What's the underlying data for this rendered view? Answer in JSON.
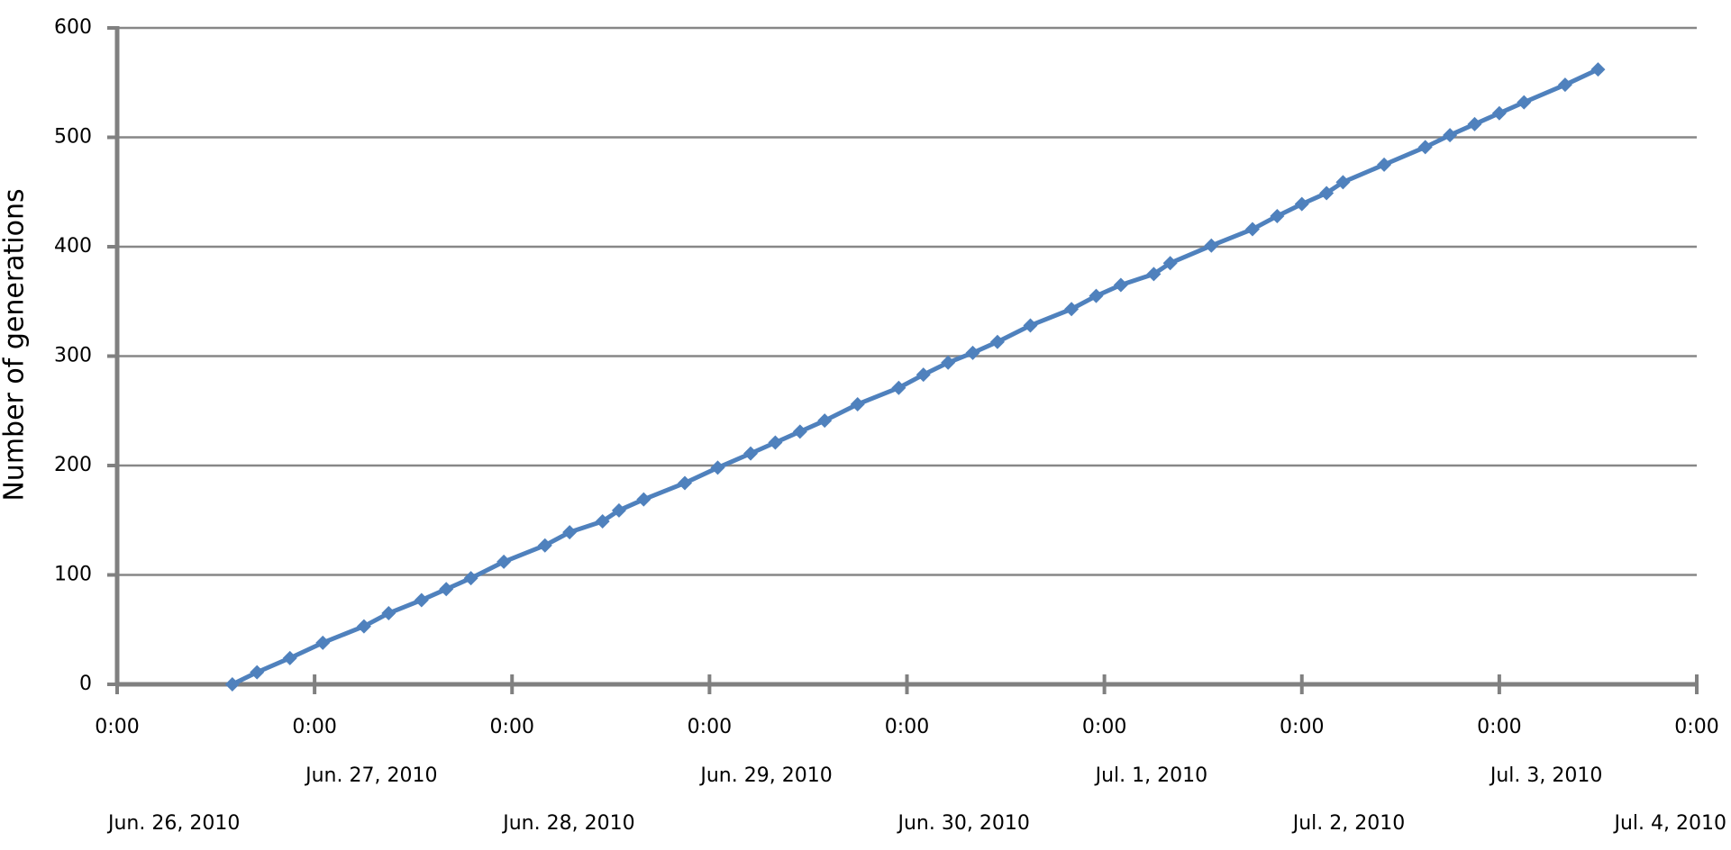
{
  "chart_data": {
    "type": "line",
    "y_label": "Number of generations",
    "ylim": [
      0,
      600
    ],
    "yticks": [
      0,
      100,
      200,
      300,
      400,
      500,
      600
    ],
    "grid": true,
    "xlim": [
      "2010-06-26T00:00",
      "2010-07-04T00:00"
    ],
    "xticks": [
      {
        "value": "2010-06-26T00:00",
        "label": "0:00",
        "date": "Jun. 26, 2010"
      },
      {
        "value": "2010-06-27T00:00",
        "label": "0:00",
        "date": "Jun. 27, 2010"
      },
      {
        "value": "2010-06-28T00:00",
        "label": "0:00",
        "date": "Jun. 28, 2010"
      },
      {
        "value": "2010-06-29T00:00",
        "label": "0:00",
        "date": "Jun. 29, 2010"
      },
      {
        "value": "2010-06-30T00:00",
        "label": "0:00",
        "date": "Jun. 30, 2010"
      },
      {
        "value": "2010-07-01T00:00",
        "label": "0:00",
        "date": "Jul. 1, 2010"
      },
      {
        "value": "2010-07-02T00:00",
        "label": "0:00",
        "date": "Jul. 2, 2010"
      },
      {
        "value": "2010-07-03T00:00",
        "label": "0:00",
        "date": "Jul. 3, 2010"
      },
      {
        "value": "2010-07-04T00:00",
        "label": "0:00",
        "date": "Jul. 4, 2010"
      }
    ],
    "x": [
      "2010-06-26T14:00",
      "2010-06-26T17:00",
      "2010-06-26T21:00",
      "2010-06-27T01:00",
      "2010-06-27T06:00",
      "2010-06-27T09:00",
      "2010-06-27T13:00",
      "2010-06-27T16:00",
      "2010-06-27T19:00",
      "2010-06-27T23:00",
      "2010-06-28T04:00",
      "2010-06-28T07:00",
      "2010-06-28T11:00",
      "2010-06-28T13:00",
      "2010-06-28T16:00",
      "2010-06-28T21:00",
      "2010-06-29T01:00",
      "2010-06-29T05:00",
      "2010-06-29T08:00",
      "2010-06-29T11:00",
      "2010-06-29T14:00",
      "2010-06-29T18:00",
      "2010-06-29T23:00",
      "2010-06-30T02:00",
      "2010-06-30T05:00",
      "2010-06-30T08:00",
      "2010-06-30T11:00",
      "2010-06-30T15:00",
      "2010-06-30T20:00",
      "2010-06-30T23:00",
      "2010-07-01T02:00",
      "2010-07-01T06:00",
      "2010-07-01T08:00",
      "2010-07-01T13:00",
      "2010-07-01T18:00",
      "2010-07-01T21:00",
      "2010-07-02T00:00",
      "2010-07-02T03:00",
      "2010-07-02T05:00",
      "2010-07-02T10:00",
      "2010-07-02T15:00",
      "2010-07-02T18:00",
      "2010-07-02T21:00",
      "2010-07-03T00:00",
      "2010-07-03T03:00",
      "2010-07-03T08:00",
      "2010-07-03T12:00"
    ],
    "series": [
      {
        "color": "#4f81bd",
        "values": [
          0,
          11,
          24,
          38,
          53,
          65,
          77,
          87,
          97,
          112,
          127,
          139,
          149,
          159,
          169,
          184,
          198,
          211,
          221,
          231,
          241,
          256,
          271,
          283,
          294,
          303,
          313,
          328,
          343,
          355,
          365,
          375,
          385,
          401,
          416,
          428,
          439,
          449,
          459,
          475,
          491,
          502,
          512,
          522,
          532,
          548,
          562
        ]
      }
    ]
  }
}
